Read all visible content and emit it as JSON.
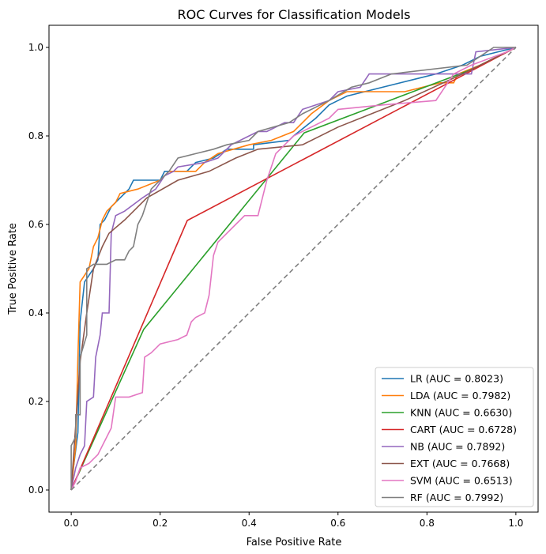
{
  "chart_data": {
    "type": "line",
    "title": "ROC Curves for Classification Models",
    "xlabel": "False Positive Rate",
    "ylabel": "True Positive Rate",
    "xlim": [
      -0.05,
      1.05
    ],
    "ylim": [
      -0.05,
      1.05
    ],
    "xticks": [
      "0.0",
      "0.2",
      "0.4",
      "0.6",
      "0.8",
      "1.0"
    ],
    "yticks": [
      "0.0",
      "0.2",
      "0.4",
      "0.6",
      "0.8",
      "1.0"
    ],
    "grid": false,
    "legend_position": "bottom-right",
    "diagonal": {
      "color": "#808080",
      "points": [
        [
          0,
          0
        ],
        [
          1,
          1
        ]
      ]
    },
    "series": [
      {
        "name": "LR (AUC = 0.8023)",
        "color": "#1f77b4",
        "points": [
          [
            0,
            0
          ],
          [
            0.005,
            0.05
          ],
          [
            0.015,
            0.13
          ],
          [
            0.02,
            0.38
          ],
          [
            0.03,
            0.47
          ],
          [
            0.05,
            0.5
          ],
          [
            0.06,
            0.52
          ],
          [
            0.065,
            0.6
          ],
          [
            0.075,
            0.61
          ],
          [
            0.08,
            0.62
          ],
          [
            0.09,
            0.64
          ],
          [
            0.11,
            0.66
          ],
          [
            0.12,
            0.67
          ],
          [
            0.13,
            0.68
          ],
          [
            0.14,
            0.7
          ],
          [
            0.2,
            0.7
          ],
          [
            0.21,
            0.72
          ],
          [
            0.26,
            0.72
          ],
          [
            0.28,
            0.74
          ],
          [
            0.32,
            0.75
          ],
          [
            0.35,
            0.77
          ],
          [
            0.41,
            0.77
          ],
          [
            0.41,
            0.78
          ],
          [
            0.49,
            0.79
          ],
          [
            0.5,
            0.8
          ],
          [
            0.55,
            0.84
          ],
          [
            0.58,
            0.87
          ],
          [
            0.6,
            0.88
          ],
          [
            0.62,
            0.89
          ],
          [
            0.78,
            0.93
          ],
          [
            0.82,
            0.94
          ],
          [
            0.88,
            0.96
          ],
          [
            0.9,
            0.97
          ],
          [
            0.92,
            0.98
          ],
          [
            1,
            1
          ]
        ]
      },
      {
        "name": "LDA (AUC = 0.7982)",
        "color": "#ff7f0e",
        "points": [
          [
            0,
            0
          ],
          [
            0.01,
            0.1
          ],
          [
            0.015,
            0.3
          ],
          [
            0.02,
            0.47
          ],
          [
            0.04,
            0.5
          ],
          [
            0.05,
            0.55
          ],
          [
            0.06,
            0.57
          ],
          [
            0.07,
            0.61
          ],
          [
            0.08,
            0.63
          ],
          [
            0.1,
            0.65
          ],
          [
            0.11,
            0.67
          ],
          [
            0.15,
            0.68
          ],
          [
            0.2,
            0.7
          ],
          [
            0.22,
            0.72
          ],
          [
            0.28,
            0.72
          ],
          [
            0.3,
            0.74
          ],
          [
            0.33,
            0.76
          ],
          [
            0.4,
            0.78
          ],
          [
            0.45,
            0.79
          ],
          [
            0.5,
            0.81
          ],
          [
            0.54,
            0.85
          ],
          [
            0.58,
            0.88
          ],
          [
            0.62,
            0.9
          ],
          [
            0.75,
            0.9
          ],
          [
            0.83,
            0.92
          ],
          [
            0.86,
            0.92
          ],
          [
            0.87,
            0.94
          ],
          [
            0.92,
            0.96
          ],
          [
            1,
            1
          ]
        ]
      },
      {
        "name": "KNN (AUC = 0.6630)",
        "color": "#2ca02c",
        "points": [
          [
            0,
            0
          ],
          [
            0.163,
            0.363
          ],
          [
            0.524,
            0.807
          ],
          [
            0.9,
            0.95
          ],
          [
            1,
            1
          ]
        ]
      },
      {
        "name": "CART (AUC = 0.6728)",
        "color": "#d62728",
        "points": [
          [
            0,
            0
          ],
          [
            0.261,
            0.609
          ],
          [
            1,
            1
          ]
        ]
      },
      {
        "name": "NB (AUC = 0.7892)",
        "color": "#9467bd",
        "points": [
          [
            0,
            0
          ],
          [
            0.01,
            0.05
          ],
          [
            0.02,
            0.08
          ],
          [
            0.03,
            0.1
          ],
          [
            0.035,
            0.2
          ],
          [
            0.05,
            0.21
          ],
          [
            0.055,
            0.3
          ],
          [
            0.065,
            0.35
          ],
          [
            0.07,
            0.4
          ],
          [
            0.085,
            0.4
          ],
          [
            0.09,
            0.58
          ],
          [
            0.1,
            0.62
          ],
          [
            0.12,
            0.63
          ],
          [
            0.16,
            0.66
          ],
          [
            0.19,
            0.68
          ],
          [
            0.21,
            0.71
          ],
          [
            0.23,
            0.72
          ],
          [
            0.24,
            0.73
          ],
          [
            0.3,
            0.74
          ],
          [
            0.33,
            0.75
          ],
          [
            0.36,
            0.78
          ],
          [
            0.4,
            0.8
          ],
          [
            0.42,
            0.81
          ],
          [
            0.44,
            0.81
          ],
          [
            0.48,
            0.83
          ],
          [
            0.5,
            0.83
          ],
          [
            0.52,
            0.86
          ],
          [
            0.58,
            0.88
          ],
          [
            0.6,
            0.9
          ],
          [
            0.65,
            0.91
          ],
          [
            0.67,
            0.94
          ],
          [
            0.9,
            0.94
          ],
          [
            0.91,
            0.99
          ],
          [
            1,
            1
          ]
        ]
      },
      {
        "name": "EXT (AUC = 0.7668)",
        "color": "#8c564b",
        "points": [
          [
            0,
            0
          ],
          [
            0.02,
            0.29
          ],
          [
            0.035,
            0.4
          ],
          [
            0.05,
            0.5
          ],
          [
            0.07,
            0.55
          ],
          [
            0.085,
            0.58
          ],
          [
            0.12,
            0.61
          ],
          [
            0.17,
            0.66
          ],
          [
            0.24,
            0.7
          ],
          [
            0.31,
            0.72
          ],
          [
            0.37,
            0.75
          ],
          [
            0.42,
            0.77
          ],
          [
            0.52,
            0.78
          ],
          [
            0.6,
            0.82
          ],
          [
            0.75,
            0.88
          ],
          [
            0.88,
            0.94
          ],
          [
            1,
            1
          ]
        ]
      },
      {
        "name": "SVM (AUC = 0.6513)",
        "color": "#e377c2",
        "points": [
          [
            0,
            0
          ],
          [
            0.01,
            0.02
          ],
          [
            0.02,
            0.05
          ],
          [
            0.04,
            0.06
          ],
          [
            0.06,
            0.08
          ],
          [
            0.07,
            0.1
          ],
          [
            0.08,
            0.12
          ],
          [
            0.09,
            0.14
          ],
          [
            0.1,
            0.21
          ],
          [
            0.13,
            0.21
          ],
          [
            0.16,
            0.22
          ],
          [
            0.165,
            0.3
          ],
          [
            0.18,
            0.31
          ],
          [
            0.2,
            0.33
          ],
          [
            0.24,
            0.34
          ],
          [
            0.26,
            0.35
          ],
          [
            0.27,
            0.38
          ],
          [
            0.28,
            0.39
          ],
          [
            0.3,
            0.4
          ],
          [
            0.31,
            0.44
          ],
          [
            0.32,
            0.53
          ],
          [
            0.33,
            0.56
          ],
          [
            0.35,
            0.58
          ],
          [
            0.37,
            0.6
          ],
          [
            0.39,
            0.62
          ],
          [
            0.42,
            0.62
          ],
          [
            0.43,
            0.66
          ],
          [
            0.44,
            0.7
          ],
          [
            0.45,
            0.73
          ],
          [
            0.46,
            0.76
          ],
          [
            0.5,
            0.8
          ],
          [
            0.58,
            0.84
          ],
          [
            0.6,
            0.86
          ],
          [
            0.7,
            0.87
          ],
          [
            0.82,
            0.88
          ],
          [
            0.86,
            0.94
          ],
          [
            0.9,
            0.96
          ],
          [
            0.98,
            0.99
          ],
          [
            1,
            1
          ]
        ]
      },
      {
        "name": "RF (AUC = 0.7992)",
        "color": "#7f7f7f",
        "points": [
          [
            0,
            0
          ],
          [
            0,
            0.1
          ],
          [
            0.01,
            0.12
          ],
          [
            0.01,
            0.17
          ],
          [
            0.02,
            0.17
          ],
          [
            0.02,
            0.3
          ],
          [
            0.035,
            0.35
          ],
          [
            0.035,
            0.5
          ],
          [
            0.05,
            0.51
          ],
          [
            0.08,
            0.51
          ],
          [
            0.1,
            0.52
          ],
          [
            0.12,
            0.52
          ],
          [
            0.13,
            0.54
          ],
          [
            0.14,
            0.55
          ],
          [
            0.15,
            0.6
          ],
          [
            0.16,
            0.62
          ],
          [
            0.18,
            0.68
          ],
          [
            0.2,
            0.7
          ],
          [
            0.22,
            0.72
          ],
          [
            0.24,
            0.75
          ],
          [
            0.28,
            0.76
          ],
          [
            0.32,
            0.77
          ],
          [
            0.35,
            0.78
          ],
          [
            0.4,
            0.79
          ],
          [
            0.42,
            0.81
          ],
          [
            0.49,
            0.83
          ],
          [
            0.52,
            0.85
          ],
          [
            0.58,
            0.88
          ],
          [
            0.63,
            0.91
          ],
          [
            0.67,
            0.92
          ],
          [
            0.72,
            0.94
          ],
          [
            0.89,
            0.96
          ],
          [
            0.95,
            1
          ],
          [
            1,
            1
          ]
        ]
      }
    ]
  }
}
